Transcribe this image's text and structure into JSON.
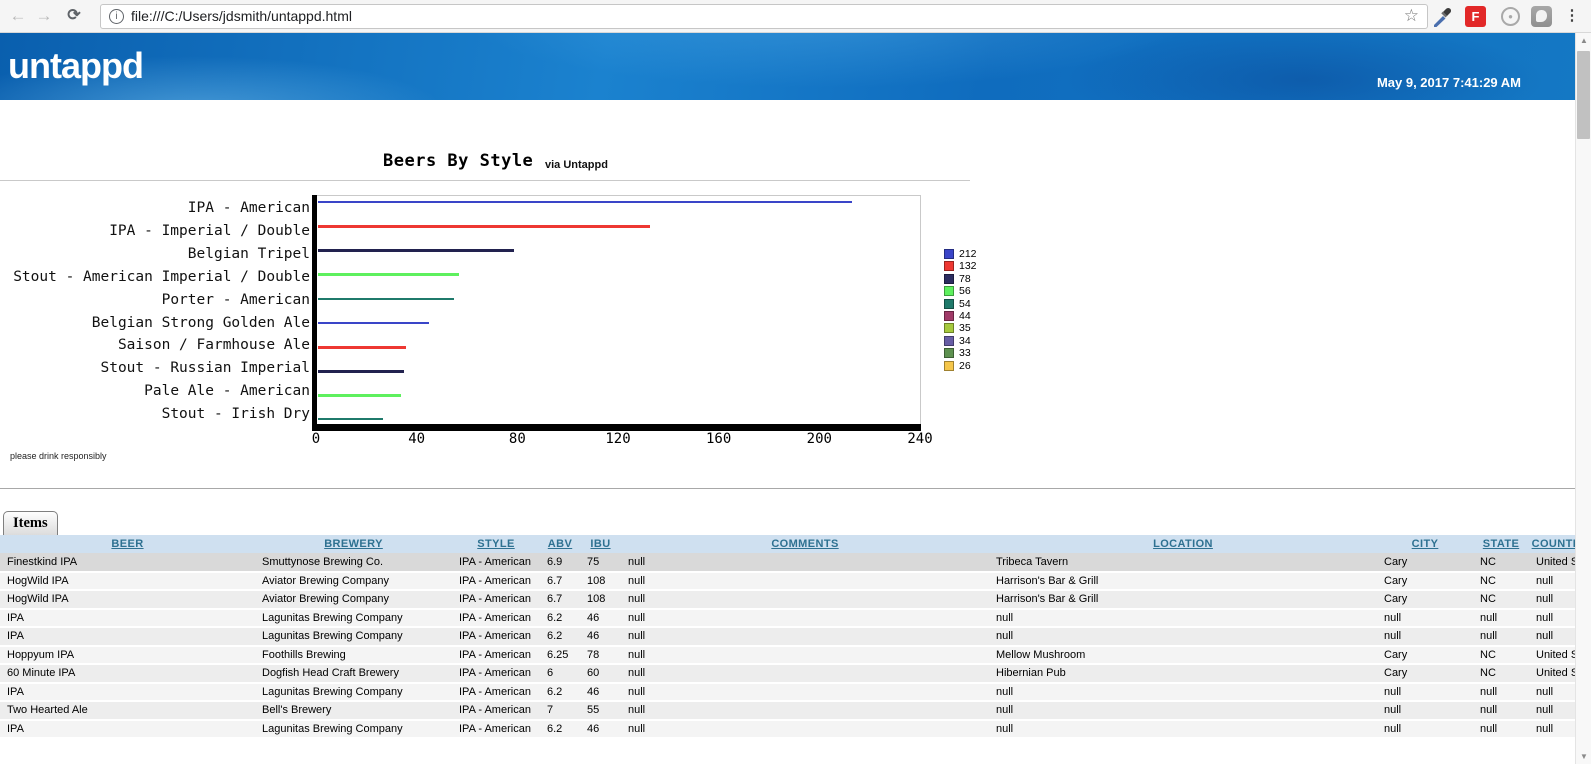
{
  "colors": {
    "brand-blue-dark": "#0a5fae",
    "brand-blue": "#1b82cf",
    "flipboard-red": "#e22828",
    "table-header-bg": "#cfe0f0",
    "table-header-text": "#2e7191",
    "row-selected": "#d9d9d9"
  },
  "browser": {
    "url": "file:///C:/Users/jdsmith/untappd.html",
    "back_glyph": "←",
    "forward_glyph": "→",
    "reload_glyph": "⟳",
    "info_glyph": "i",
    "star_glyph": "☆",
    "flipboard_label": "F",
    "menu_glyph": "⋮"
  },
  "header": {
    "logo": "untappd",
    "datetime": "May 9, 2017 7:41:29 AM"
  },
  "chart": {
    "title": "Beers By Style",
    "subtitle": "via Untappd",
    "footnote": "please drink responsibly"
  },
  "chart_data": {
    "type": "bar",
    "orientation": "horizontal",
    "title": "Beers By Style",
    "subtitle": "via Untappd",
    "categories": [
      "IPA - American",
      "IPA - Imperial / Double",
      "Belgian Tripel",
      "Stout - American Imperial / Double",
      "Porter - American",
      "Belgian Strong Golden Ale",
      "Saison / Farmhouse Ale",
      "Stout - Russian Imperial",
      "Pale Ale - American",
      "Stout - Irish Dry"
    ],
    "values": [
      212,
      132,
      78,
      56,
      54,
      44,
      35,
      34,
      33,
      26
    ],
    "xlim": [
      0,
      240
    ],
    "xticks": [
      0,
      40,
      80,
      120,
      160,
      200,
      240
    ],
    "grid": true,
    "legend_position": "right",
    "legend_labels": [
      "212",
      "132",
      "78",
      "56",
      "54",
      "44",
      "35",
      "34",
      "33",
      "26"
    ],
    "legend_colors": [
      "#3a45c8",
      "#ee3832",
      "#2c2c60",
      "#5ef05e",
      "#1f7a6b",
      "#a03a68",
      "#a6c93e",
      "#675da5",
      "#5d9150",
      "#f5c64a"
    ],
    "series_colors": [
      "#3a45c8",
      "#ee3832",
      "#22224f",
      "#5ef05e",
      "#1f7a6b"
    ]
  },
  "items_panel": {
    "tab_label": "Items",
    "columns": [
      "BEER",
      "BREWERY",
      "STYLE",
      "ABV",
      "IBU",
      "COMMENTS",
      "LOCATION",
      "CITY",
      "STATE",
      "COUNTRY"
    ],
    "rows": [
      [
        "Finestkind IPA",
        "Smuttynose Brewing Co.",
        "IPA - American",
        "6.9",
        "75",
        "null",
        "Tribeca Tavern",
        "Cary",
        "NC",
        "United States"
      ],
      [
        "HogWild IPA",
        "Aviator Brewing Company",
        "IPA - American",
        "6.7",
        "108",
        "null",
        "Harrison's Bar & Grill",
        "Cary",
        "NC",
        "null"
      ],
      [
        "HogWild IPA",
        "Aviator Brewing Company",
        "IPA - American",
        "6.7",
        "108",
        "null",
        "Harrison's Bar & Grill",
        "Cary",
        "NC",
        "null"
      ],
      [
        "IPA",
        "Lagunitas Brewing Company",
        "IPA - American",
        "6.2",
        "46",
        "null",
        "null",
        "null",
        "null",
        "null"
      ],
      [
        "IPA",
        "Lagunitas Brewing Company",
        "IPA - American",
        "6.2",
        "46",
        "null",
        "null",
        "null",
        "null",
        "null"
      ],
      [
        "Hoppyum IPA",
        "Foothills Brewing",
        "IPA - American",
        "6.25",
        "78",
        "null",
        "Mellow Mushroom",
        "Cary",
        "NC",
        "United States"
      ],
      [
        "60 Minute IPA",
        "Dogfish Head Craft Brewery",
        "IPA - American",
        "6",
        "60",
        "null",
        "Hibernian Pub",
        "Cary",
        "NC",
        "United States"
      ],
      [
        "IPA",
        "Lagunitas Brewing Company",
        "IPA - American",
        "6.2",
        "46",
        "null",
        "null",
        "null",
        "null",
        "null"
      ],
      [
        "Two Hearted Ale",
        "Bell's Brewery",
        "IPA - American",
        "7",
        "55",
        "null",
        "null",
        "null",
        "null",
        "null"
      ],
      [
        "IPA",
        "Lagunitas Brewing Company",
        "IPA - American",
        "6.2",
        "46",
        "null",
        "null",
        "null",
        "null",
        "null"
      ]
    ]
  }
}
